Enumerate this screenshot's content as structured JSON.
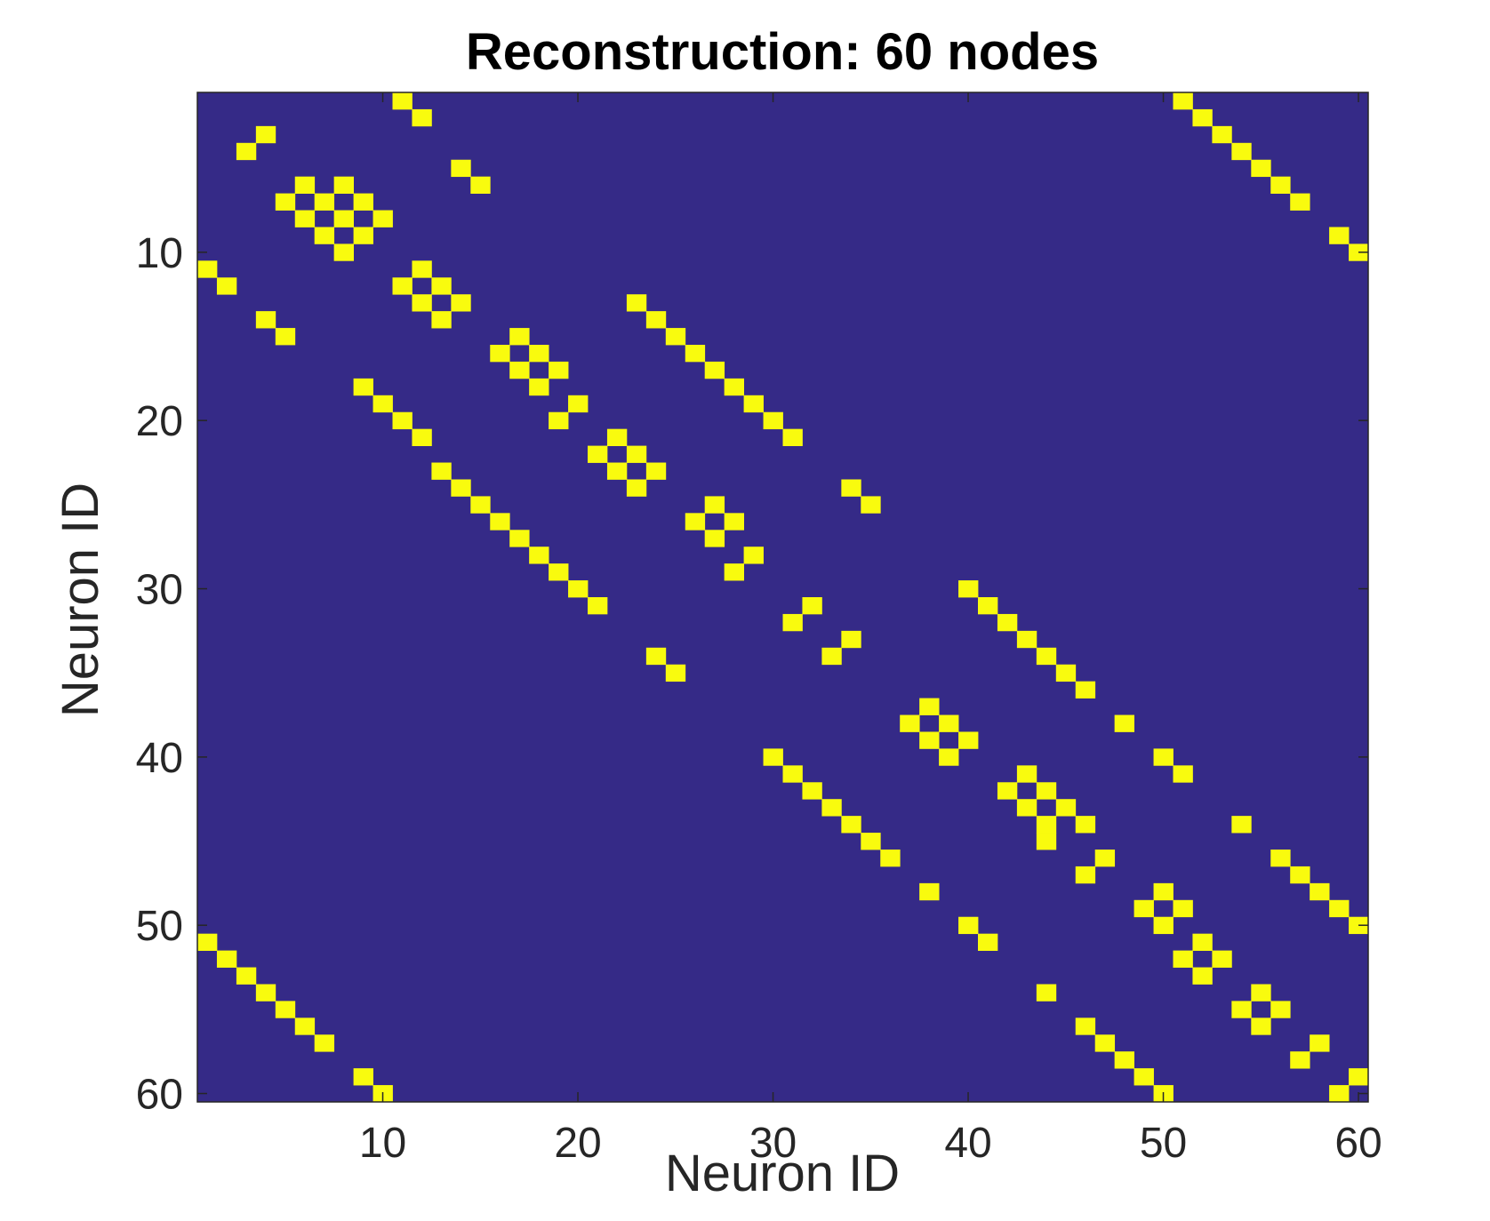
{
  "chart_data": {
    "type": "heatmap",
    "title": "Reconstruction: 60 nodes",
    "xlabel": "Neuron ID",
    "ylabel": "Neuron ID",
    "xlim": [
      0.5,
      60.5
    ],
    "ylim": [
      0.5,
      60.5
    ],
    "y_reversed": true,
    "grid": false,
    "xticks": [
      10,
      20,
      30,
      40,
      50,
      60
    ],
    "yticks": [
      10,
      20,
      30,
      40,
      50,
      60
    ],
    "background_color": "#352A87",
    "cell_color": "#F9FB0E",
    "cells": [
      [
        1,
        11
      ],
      [
        2,
        12
      ],
      [
        3,
        4
      ],
      [
        4,
        3
      ],
      [
        5,
        14
      ],
      [
        6,
        15
      ],
      [
        6,
        6
      ],
      [
        6,
        8
      ],
      [
        7,
        5
      ],
      [
        7,
        7
      ],
      [
        8,
        6
      ],
      [
        8,
        8
      ],
      [
        7,
        9
      ],
      [
        9,
        7
      ],
      [
        8,
        10
      ],
      [
        9,
        9
      ],
      [
        10,
        8
      ],
      [
        1,
        51
      ],
      [
        2,
        52
      ],
      [
        3,
        53
      ],
      [
        4,
        54
      ],
      [
        5,
        55
      ],
      [
        6,
        56
      ],
      [
        7,
        57
      ],
      [
        9,
        59
      ],
      [
        10,
        60
      ],
      [
        11,
        1
      ],
      [
        12,
        2
      ],
      [
        14,
        4
      ],
      [
        15,
        5
      ],
      [
        11,
        12
      ],
      [
        12,
        11
      ],
      [
        12,
        13
      ],
      [
        13,
        12
      ],
      [
        13,
        14
      ],
      [
        14,
        13
      ],
      [
        18,
        9
      ],
      [
        19,
        10
      ],
      [
        20,
        11
      ],
      [
        21,
        12
      ],
      [
        13,
        23
      ],
      [
        14,
        24
      ],
      [
        15,
        25
      ],
      [
        16,
        26
      ],
      [
        17,
        27
      ],
      [
        18,
        28
      ],
      [
        19,
        29
      ],
      [
        20,
        30
      ],
      [
        21,
        31
      ],
      [
        15,
        17
      ],
      [
        16,
        16
      ],
      [
        16,
        18
      ],
      [
        17,
        17
      ],
      [
        17,
        19
      ],
      [
        18,
        18
      ],
      [
        19,
        20
      ],
      [
        20,
        19
      ],
      [
        21,
        22
      ],
      [
        22,
        21
      ],
      [
        22,
        23
      ],
      [
        23,
        22
      ],
      [
        23,
        24
      ],
      [
        24,
        23
      ],
      [
        23,
        13
      ],
      [
        24,
        14
      ],
      [
        25,
        15
      ],
      [
        26,
        16
      ],
      [
        27,
        17
      ],
      [
        28,
        18
      ],
      [
        29,
        19
      ],
      [
        30,
        20
      ],
      [
        31,
        21
      ],
      [
        24,
        34
      ],
      [
        25,
        35
      ],
      [
        26,
        26
      ],
      [
        25,
        27
      ],
      [
        26,
        28
      ],
      [
        27,
        27
      ],
      [
        28,
        29
      ],
      [
        29,
        28
      ],
      [
        30,
        40
      ],
      [
        31,
        41
      ],
      [
        32,
        42
      ],
      [
        33,
        43
      ],
      [
        34,
        44
      ],
      [
        35,
        45
      ],
      [
        36,
        46
      ],
      [
        31,
        32
      ],
      [
        32,
        31
      ],
      [
        33,
        34
      ],
      [
        34,
        33
      ],
      [
        34,
        24
      ],
      [
        35,
        25
      ],
      [
        37,
        38
      ],
      [
        38,
        37
      ],
      [
        38,
        39
      ],
      [
        39,
        38
      ],
      [
        39,
        40
      ],
      [
        40,
        39
      ],
      [
        38,
        48
      ],
      [
        40,
        50
      ],
      [
        41,
        51
      ],
      [
        40,
        30
      ],
      [
        41,
        31
      ],
      [
        42,
        32
      ],
      [
        43,
        33
      ],
      [
        44,
        34
      ],
      [
        45,
        35
      ],
      [
        46,
        36
      ],
      [
        41,
        43
      ],
      [
        42,
        42
      ],
      [
        42,
        44
      ],
      [
        43,
        43
      ],
      [
        43,
        45
      ],
      [
        44,
        44
      ],
      [
        44,
        46
      ],
      [
        45,
        44
      ],
      [
        44,
        54
      ],
      [
        46,
        56
      ],
      [
        47,
        57
      ],
      [
        48,
        58
      ],
      [
        49,
        59
      ],
      [
        50,
        60
      ],
      [
        46,
        47
      ],
      [
        47,
        46
      ],
      [
        48,
        38
      ],
      [
        50,
        40
      ],
      [
        51,
        41
      ],
      [
        48,
        50
      ],
      [
        49,
        49
      ],
      [
        49,
        51
      ],
      [
        50,
        50
      ],
      [
        51,
        52
      ],
      [
        52,
        51
      ],
      [
        52,
        53
      ],
      [
        53,
        52
      ],
      [
        54,
        44
      ],
      [
        54,
        55
      ],
      [
        55,
        54
      ],
      [
        55,
        56
      ],
      [
        56,
        55
      ],
      [
        51,
        1
      ],
      [
        52,
        2
      ],
      [
        53,
        3
      ],
      [
        54,
        4
      ],
      [
        55,
        5
      ],
      [
        56,
        6
      ],
      [
        57,
        7
      ],
      [
        59,
        9
      ],
      [
        60,
        10
      ],
      [
        56,
        46
      ],
      [
        57,
        47
      ],
      [
        58,
        48
      ],
      [
        59,
        49
      ],
      [
        60,
        50
      ],
      [
        57,
        58
      ],
      [
        58,
        57
      ],
      [
        59,
        60
      ],
      [
        60,
        59
      ]
    ]
  }
}
